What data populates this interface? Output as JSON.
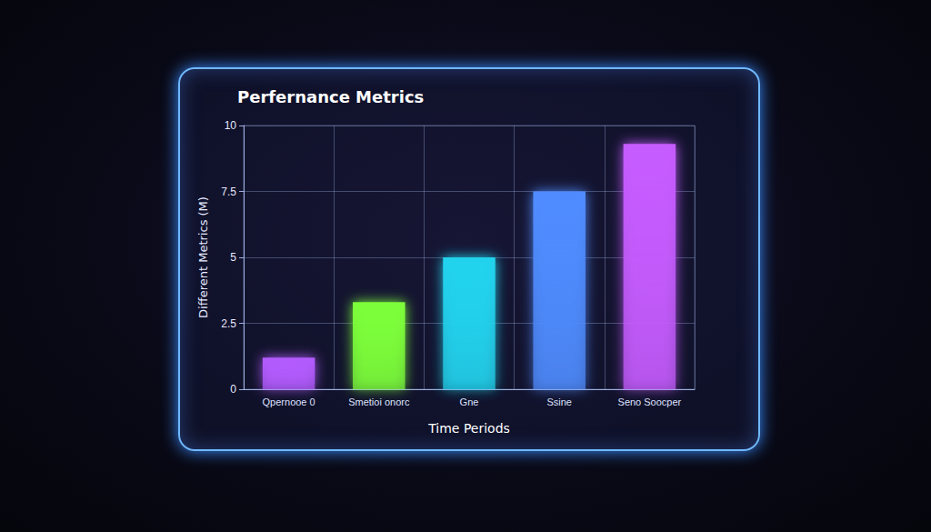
{
  "chart_data": {
    "type": "bar",
    "title": "Perfernance Metrics",
    "x_label": "Time Periods",
    "y_label": "Different Metrics (M)",
    "categories": [
      "Qpernooe 0",
      "Smetioi onorc",
      "Gne",
      "Ssine",
      "Seno Soocper"
    ],
    "values": [
      1.2,
      3.3,
      5,
      7.5,
      9.3
    ],
    "colors": [
      "#b45cff",
      "#7dff3a",
      "#22d3ee",
      "#4f8cff",
      "#c65cff"
    ],
    "ylim": [
      0,
      10
    ],
    "yticks": [
      0,
      2.5,
      5,
      7.5,
      10
    ],
    "grid": true
  }
}
